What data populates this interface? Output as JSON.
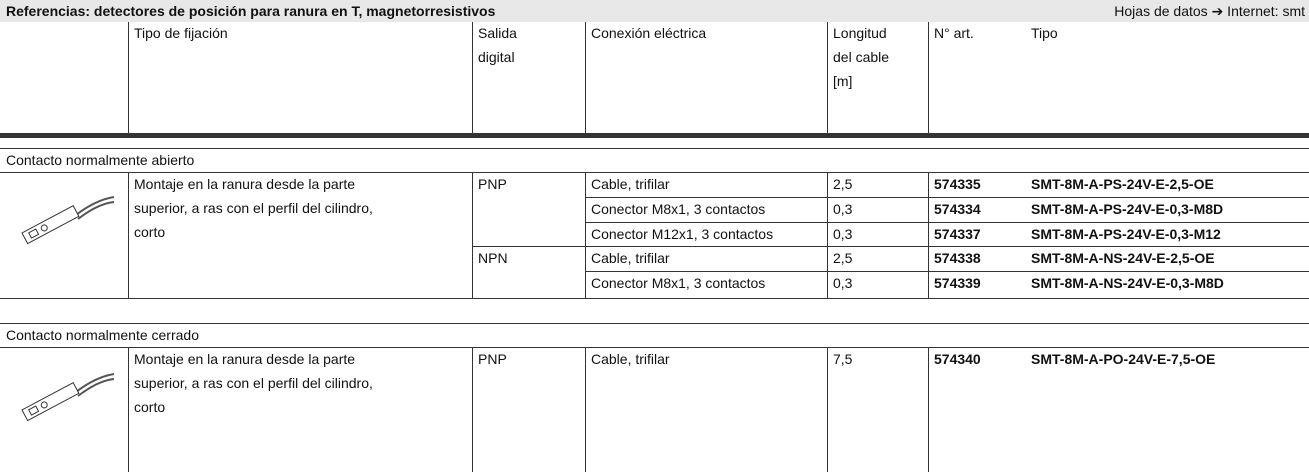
{
  "header": {
    "title": "Referencias: detectores de posición para ranura en T, magnetorresistivos",
    "note": "Hojas de datos ➔ Internet: smt"
  },
  "columns": [
    "Tipo de fijación",
    "Salida\ndigital",
    "Conexión eléctrica",
    "Longitud\ndel cable\n[m]",
    "N° art.",
    "Tipo"
  ],
  "sections": [
    {
      "title": "Contacto normalmente abierto",
      "mounting": "Montaje en la ranura desde la parte\nsuperior, a ras con el perfil del cilindro,\ncorto",
      "groups": [
        {
          "output": "PNP",
          "rows": [
            [
              "Cable, trifilar",
              "2,5",
              "574335",
              "SMT-8M-A-PS-24V-E-2,5-OE"
            ],
            [
              "Conector M8x1, 3 contactos",
              "0,3",
              "574334",
              "SMT-8M-A-PS-24V-E-0,3-M8D"
            ],
            [
              "Conector M12x1, 3 contactos",
              "0,3",
              "574337",
              "SMT-8M-A-PS-24V-E-0,3-M12"
            ]
          ]
        },
        {
          "output": "NPN",
          "rows": [
            [
              "Cable, trifilar",
              "2,5",
              "574338",
              "SMT-8M-A-NS-24V-E-2,5-OE"
            ],
            [
              "Conector M8x1, 3 contactos",
              "0,3",
              "574339",
              "SMT-8M-A-NS-24V-E-0,3-M8D"
            ]
          ]
        }
      ]
    },
    {
      "title": "Contacto normalmente cerrado",
      "mounting": "Montaje en la ranura desde la parte\nsuperior, a ras con el perfil del cilindro,\ncorto",
      "groups": [
        {
          "output": "PNP",
          "rows": [
            [
              "Cable, trifilar",
              "7,5",
              "574340",
              "SMT-8M-A-PO-24V-E-7,5-OE"
            ]
          ]
        }
      ]
    }
  ]
}
